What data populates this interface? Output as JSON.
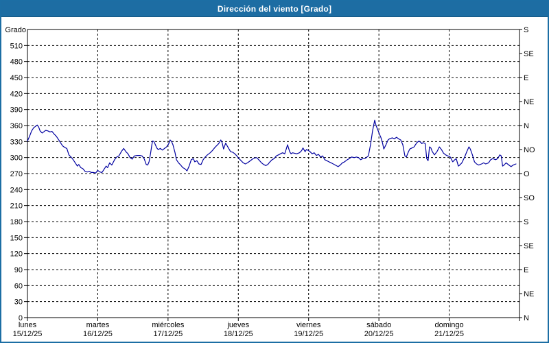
{
  "window": {
    "title": "Dirección del viento [Grado]"
  },
  "colors": {
    "titlebar_bg": "#1D6DA3",
    "frame_border": "#1C6EA4",
    "series_line": "#0000A0",
    "grid": "#000000",
    "text": "#000000",
    "plot_bg": "#FFFFFF"
  },
  "chart_data": {
    "type": "line",
    "title": "Dirección del viento [Grado]",
    "ylabel_left": "Grado",
    "grid": true,
    "legend": "none",
    "y_left": {
      "min": 0,
      "max": 540,
      "tick_step": 30,
      "labeled_min": 0,
      "labeled_max": 510
    },
    "y_right": {
      "tick_step": 45,
      "labels_bottom_to_top": [
        "N",
        "NE",
        "E",
        "SE",
        "S",
        "SO",
        "O",
        "NO",
        "N",
        "NE",
        "E",
        "SE",
        "S"
      ]
    },
    "x_axis": {
      "min_days": 0,
      "max_days": 7,
      "days": [
        {
          "name": "lunes",
          "date": "15/12/25"
        },
        {
          "name": "martes",
          "date": "16/12/25"
        },
        {
          "name": "miércoles",
          "date": "17/12/25"
        },
        {
          "name": "jueves",
          "date": "18/12/25"
        },
        {
          "name": "viernes",
          "date": "19/12/25"
        },
        {
          "name": "sábado",
          "date": "20/12/25"
        },
        {
          "name": "domingo",
          "date": "21/12/25"
        }
      ]
    },
    "series": [
      {
        "name": "Dirección del viento",
        "unit": "Grado",
        "color": "#0000A0",
        "points": [
          [
            0.0,
            331
          ],
          [
            0.03,
            340
          ],
          [
            0.06,
            350
          ],
          [
            0.09,
            356
          ],
          [
            0.12,
            359
          ],
          [
            0.14,
            361
          ],
          [
            0.16,
            357
          ],
          [
            0.18,
            350
          ],
          [
            0.21,
            346
          ],
          [
            0.23,
            348
          ],
          [
            0.26,
            351
          ],
          [
            0.29,
            350
          ],
          [
            0.32,
            348
          ],
          [
            0.35,
            349
          ],
          [
            0.38,
            344
          ],
          [
            0.41,
            340
          ],
          [
            0.44,
            334
          ],
          [
            0.47,
            328
          ],
          [
            0.5,
            322
          ],
          [
            0.53,
            319
          ],
          [
            0.56,
            317
          ],
          [
            0.59,
            305
          ],
          [
            0.62,
            301
          ],
          [
            0.65,
            296
          ],
          [
            0.68,
            290
          ],
          [
            0.71,
            284
          ],
          [
            0.73,
            287
          ],
          [
            0.76,
            281
          ],
          [
            0.79,
            279
          ],
          [
            0.82,
            274
          ],
          [
            0.85,
            273
          ],
          [
            0.88,
            274
          ],
          [
            0.91,
            272
          ],
          [
            0.94,
            272
          ],
          [
            0.97,
            271
          ],
          [
            1.0,
            276
          ],
          [
            1.03,
            273
          ],
          [
            1.06,
            272
          ],
          [
            1.09,
            278
          ],
          [
            1.12,
            284
          ],
          [
            1.14,
            281
          ],
          [
            1.17,
            290
          ],
          [
            1.2,
            286
          ],
          [
            1.24,
            296
          ],
          [
            1.27,
            301
          ],
          [
            1.3,
            303
          ],
          [
            1.34,
            312
          ],
          [
            1.37,
            317
          ],
          [
            1.4,
            311
          ],
          [
            1.43,
            307
          ],
          [
            1.46,
            300
          ],
          [
            1.49,
            297
          ],
          [
            1.52,
            303
          ],
          [
            1.56,
            304
          ],
          [
            1.6,
            304
          ],
          [
            1.63,
            303
          ],
          [
            1.66,
            298
          ],
          [
            1.69,
            287
          ],
          [
            1.71,
            286
          ],
          [
            1.73,
            292
          ],
          [
            1.75,
            307
          ],
          [
            1.77,
            324
          ],
          [
            1.78,
            331
          ],
          [
            1.8,
            330
          ],
          [
            1.82,
            324
          ],
          [
            1.84,
            318
          ],
          [
            1.86,
            315
          ],
          [
            1.89,
            317
          ],
          [
            1.92,
            314
          ],
          [
            1.95,
            317
          ],
          [
            1.98,
            320
          ],
          [
            2.01,
            326
          ],
          [
            2.03,
            333
          ],
          [
            2.05,
            330
          ],
          [
            2.07,
            324
          ],
          [
            2.1,
            309
          ],
          [
            2.12,
            296
          ],
          [
            2.15,
            290
          ],
          [
            2.18,
            286
          ],
          [
            2.21,
            281
          ],
          [
            2.24,
            279
          ],
          [
            2.27,
            275
          ],
          [
            2.3,
            284
          ],
          [
            2.33,
            296
          ],
          [
            2.36,
            298
          ],
          [
            2.38,
            292
          ],
          [
            2.41,
            294
          ],
          [
            2.44,
            288
          ],
          [
            2.47,
            287
          ],
          [
            2.5,
            296
          ],
          [
            2.53,
            301
          ],
          [
            2.56,
            305
          ],
          [
            2.6,
            309
          ],
          [
            2.63,
            313
          ],
          [
            2.66,
            318
          ],
          [
            2.69,
            322
          ],
          [
            2.72,
            326
          ],
          [
            2.75,
            333
          ],
          [
            2.77,
            328
          ],
          [
            2.79,
            316
          ],
          [
            2.82,
            327
          ],
          [
            2.85,
            320
          ],
          [
            2.89,
            311
          ],
          [
            2.92,
            310
          ],
          [
            2.95,
            307
          ],
          [
            2.98,
            303
          ],
          [
            3.01,
            298
          ],
          [
            3.04,
            294
          ],
          [
            3.07,
            290
          ],
          [
            3.1,
            288
          ],
          [
            3.13,
            290
          ],
          [
            3.16,
            293
          ],
          [
            3.2,
            297
          ],
          [
            3.23,
            299
          ],
          [
            3.26,
            300
          ],
          [
            3.29,
            296
          ],
          [
            3.33,
            290
          ],
          [
            3.36,
            287
          ],
          [
            3.39,
            285
          ],
          [
            3.42,
            287
          ],
          [
            3.45,
            292
          ],
          [
            3.48,
            296
          ],
          [
            3.51,
            298
          ],
          [
            3.54,
            303
          ],
          [
            3.57,
            305
          ],
          [
            3.6,
            307
          ],
          [
            3.63,
            309
          ],
          [
            3.66,
            307
          ],
          [
            3.68,
            315
          ],
          [
            3.7,
            324
          ],
          [
            3.73,
            311
          ],
          [
            3.75,
            307
          ],
          [
            3.77,
            309
          ],
          [
            3.8,
            308
          ],
          [
            3.83,
            307
          ],
          [
            3.87,
            309
          ],
          [
            3.9,
            313
          ],
          [
            3.92,
            318
          ],
          [
            3.95,
            311
          ],
          [
            3.97,
            315
          ],
          [
            4.0,
            313
          ],
          [
            4.02,
            311
          ],
          [
            4.05,
            307
          ],
          [
            4.08,
            309
          ],
          [
            4.11,
            304
          ],
          [
            4.14,
            306
          ],
          [
            4.17,
            301
          ],
          [
            4.2,
            303
          ],
          [
            4.23,
            296
          ],
          [
            4.26,
            294
          ],
          [
            4.29,
            292
          ],
          [
            4.32,
            290
          ],
          [
            4.35,
            288
          ],
          [
            4.38,
            286
          ],
          [
            4.42,
            283
          ],
          [
            4.45,
            286
          ],
          [
            4.48,
            290
          ],
          [
            4.51,
            292
          ],
          [
            4.55,
            296
          ],
          [
            4.58,
            298
          ],
          [
            4.61,
            301
          ],
          [
            4.65,
            300
          ],
          [
            4.68,
            301
          ],
          [
            4.71,
            300
          ],
          [
            4.74,
            296
          ],
          [
            4.77,
            298
          ],
          [
            4.8,
            298
          ],
          [
            4.83,
            301
          ],
          [
            4.85,
            303
          ],
          [
            4.88,
            324
          ],
          [
            4.91,
            350
          ],
          [
            4.94,
            370
          ],
          [
            4.96,
            360
          ],
          [
            4.99,
            350
          ],
          [
            5.01,
            343
          ],
          [
            5.03,
            337
          ],
          [
            5.05,
            328
          ],
          [
            5.07,
            316
          ],
          [
            5.1,
            324
          ],
          [
            5.13,
            333
          ],
          [
            5.15,
            335
          ],
          [
            5.19,
            337
          ],
          [
            5.22,
            335
          ],
          [
            5.25,
            338
          ],
          [
            5.28,
            335
          ],
          [
            5.31,
            333
          ],
          [
            5.34,
            324
          ],
          [
            5.37,
            303
          ],
          [
            5.39,
            301
          ],
          [
            5.42,
            311
          ],
          [
            5.44,
            316
          ],
          [
            5.47,
            318
          ],
          [
            5.5,
            320
          ],
          [
            5.52,
            324
          ],
          [
            5.54,
            328
          ],
          [
            5.57,
            331
          ],
          [
            5.6,
            328
          ],
          [
            5.61,
            326
          ],
          [
            5.63,
            328
          ],
          [
            5.66,
            326
          ],
          [
            5.68,
            298
          ],
          [
            5.7,
            294
          ],
          [
            5.72,
            320
          ],
          [
            5.74,
            318
          ],
          [
            5.76,
            311
          ],
          [
            5.79,
            305
          ],
          [
            5.83,
            312
          ],
          [
            5.86,
            320
          ],
          [
            5.89,
            315
          ],
          [
            5.92,
            308
          ],
          [
            5.95,
            305
          ],
          [
            5.98,
            303
          ],
          [
            6.01,
            302
          ],
          [
            6.05,
            292
          ],
          [
            6.08,
            296
          ],
          [
            6.1,
            298
          ],
          [
            6.13,
            284
          ],
          [
            6.15,
            286
          ],
          [
            6.18,
            290
          ],
          [
            6.22,
            301
          ],
          [
            6.25,
            311
          ],
          [
            6.28,
            320
          ],
          [
            6.3,
            316
          ],
          [
            6.33,
            305
          ],
          [
            6.36,
            292
          ],
          [
            6.39,
            288
          ],
          [
            6.42,
            286
          ],
          [
            6.46,
            288
          ],
          [
            6.49,
            290
          ],
          [
            6.52,
            288
          ],
          [
            6.56,
            290
          ],
          [
            6.59,
            296
          ],
          [
            6.62,
            298
          ],
          [
            6.66,
            296
          ],
          [
            6.69,
            298
          ],
          [
            6.72,
            305
          ],
          [
            6.74,
            303
          ],
          [
            6.76,
            284
          ],
          [
            6.78,
            286
          ],
          [
            6.81,
            290
          ],
          [
            6.85,
            286
          ],
          [
            6.88,
            283
          ],
          [
            6.91,
            286
          ],
          [
            6.95,
            288
          ]
        ]
      }
    ]
  }
}
